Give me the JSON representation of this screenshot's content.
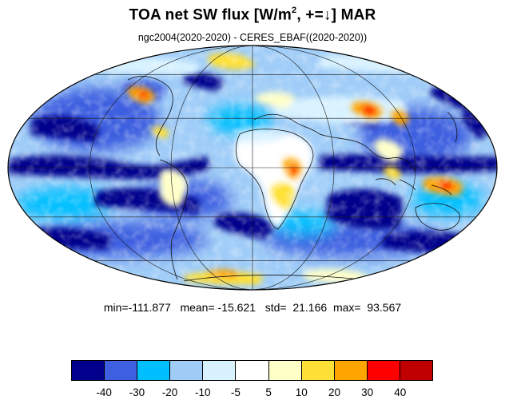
{
  "title": {
    "main_prefix": "TOA net SW flux [W/m",
    "superscript": "2",
    "main_suffix": ", +=↓]  MAR"
  },
  "subtitle": "ngc2004(2020-2020) - CERES_EBAF((2020-2020))",
  "stats": {
    "min_label": "min=",
    "min": "-111.877",
    "mean_label": "mean=",
    "mean": "-15.621",
    "std_label": "std=",
    "std": "21.166",
    "max_label": "max=",
    "max": "93.567"
  },
  "map": {
    "projection": "mollweide",
    "gridlines": true,
    "coastlines": true,
    "central_longitude": 0
  },
  "colorbar": {
    "colors": [
      "#00008c",
      "#3d5fe0",
      "#00bfff",
      "#a0cdf8",
      "#d8f2ff",
      "#ffffff",
      "#ffffc8",
      "#ffe036",
      "#ffa500",
      "#ff0000",
      "#c00000"
    ],
    "labels": [
      "-40",
      "-30",
      "-20",
      "-10",
      "-5",
      "5",
      "10",
      "20",
      "30",
      "40"
    ]
  }
}
